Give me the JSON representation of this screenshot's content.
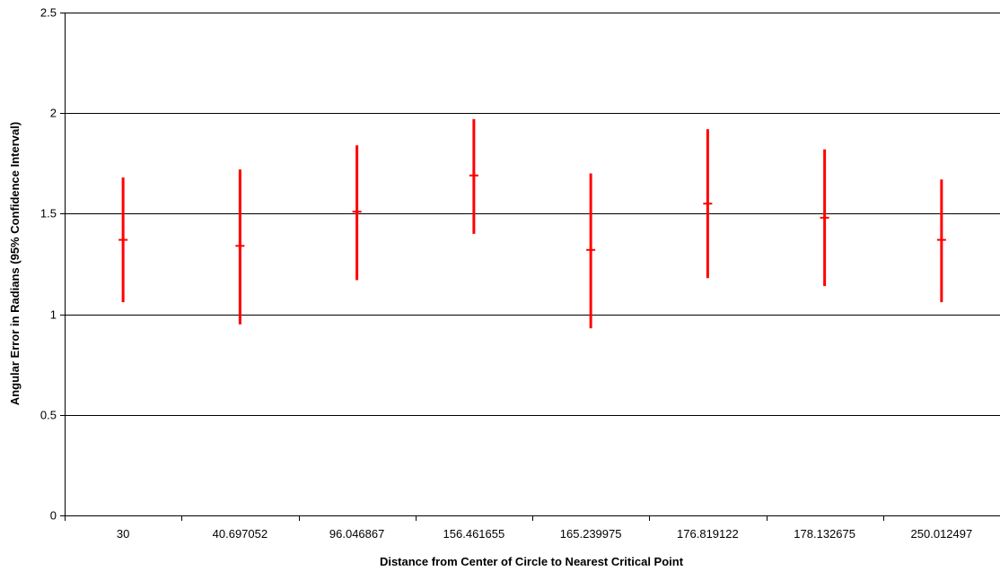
{
  "chart_data": {
    "type": "error-bar",
    "title": "",
    "xlabel": "Distance from Center of Circle to Nearest Critical Point",
    "ylabel": "Angular Error in Radians (95% Confidence Interval)",
    "categories": [
      "30",
      "40.697052",
      "96.046867",
      "156.461655",
      "165.239975",
      "176.819122",
      "178.132675",
      "250.012497"
    ],
    "series": [
      {
        "mean": [
          1.37,
          1.34,
          1.51,
          1.69,
          1.32,
          1.55,
          1.48,
          1.37
        ],
        "low": [
          1.06,
          0.95,
          1.17,
          1.4,
          0.93,
          1.18,
          1.14,
          1.06
        ],
        "high": [
          1.68,
          1.72,
          1.84,
          1.97,
          1.7,
          1.92,
          1.82,
          1.67
        ]
      }
    ],
    "ylim": [
      0,
      2.5
    ],
    "yticks": [
      "0",
      "0.5",
      "1",
      "1.5",
      "2",
      "2.5"
    ],
    "grid": true,
    "legend": "none",
    "color": "#ff0000"
  }
}
